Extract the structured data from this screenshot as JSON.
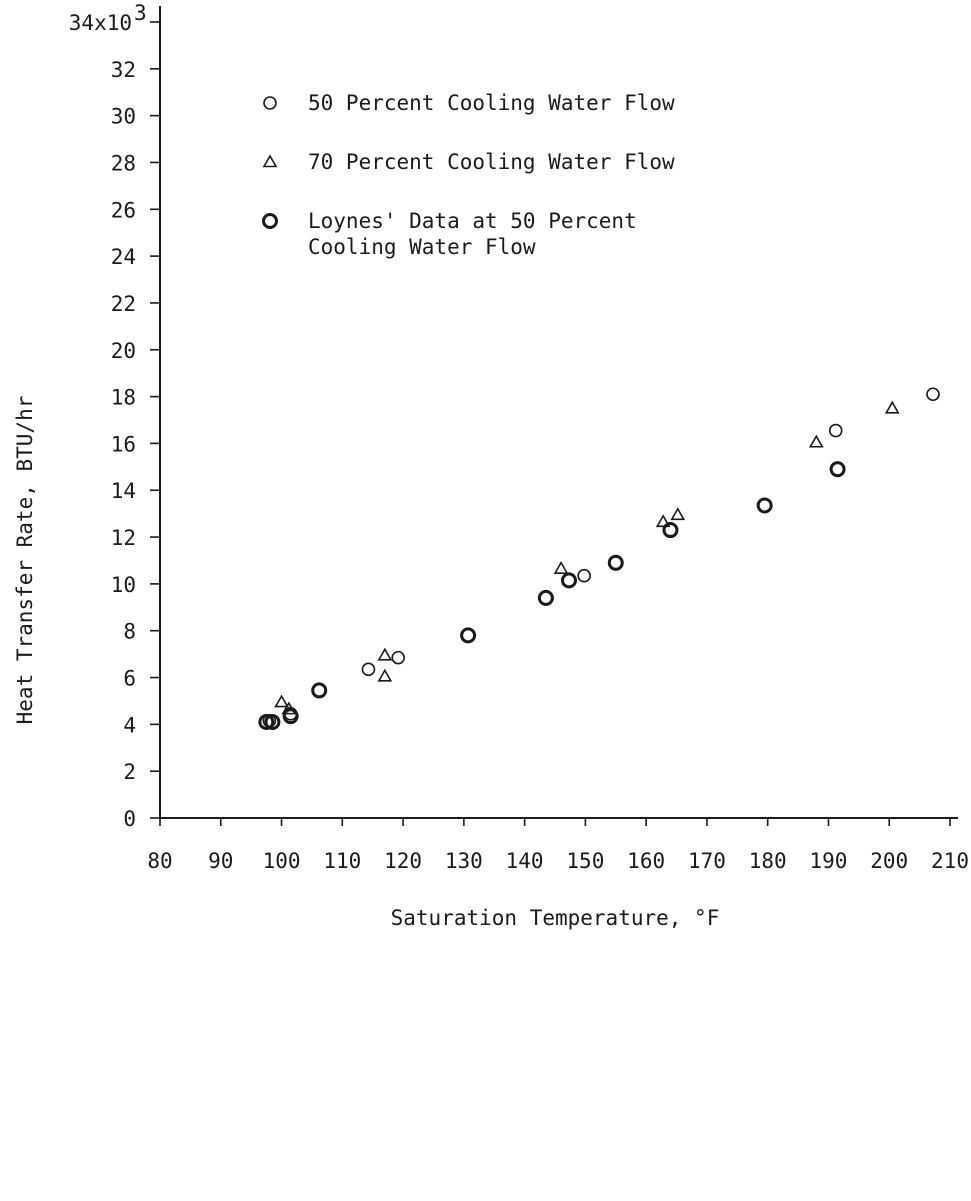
{
  "chart_data": {
    "type": "scatter",
    "title": "",
    "xlabel": "Saturation Temperature, °F",
    "ylabel": "Heat Transfer Rate, BTU/hr",
    "y_multiplier_label": "34x10",
    "y_multiplier_exp": "3",
    "xlim": [
      80,
      210
    ],
    "ylim": [
      0,
      34
    ],
    "x_ticks": [
      80,
      90,
      100,
      110,
      120,
      130,
      140,
      150,
      160,
      170,
      180,
      190,
      200,
      210
    ],
    "y_ticks": [
      0,
      2,
      4,
      6,
      8,
      10,
      12,
      14,
      16,
      18,
      20,
      22,
      24,
      26,
      28,
      30,
      32,
      34
    ],
    "grid": false,
    "legend_position": "top-left",
    "legend": [
      {
        "lines": [
          "50 Percent Cooling Water Flow"
        ],
        "marker": "circle"
      },
      {
        "lines": [
          "70 Percent Cooling Water Flow"
        ],
        "marker": "triangle"
      },
      {
        "lines": [
          "Loynes' Data at 50 Percent",
          "Cooling Water Flow"
        ],
        "marker": "thick-circle"
      }
    ],
    "series": [
      {
        "name": "50 Percent Cooling Water Flow",
        "marker": "circle",
        "points": [
          [
            98.0,
            4.15
          ],
          [
            101.5,
            4.45
          ],
          [
            114.3,
            6.35
          ],
          [
            119.2,
            6.85
          ],
          [
            149.8,
            10.35
          ],
          [
            191.2,
            16.55
          ],
          [
            207.2,
            18.1
          ]
        ]
      },
      {
        "name": "70 Percent Cooling Water Flow",
        "marker": "triangle",
        "points": [
          [
            100.0,
            4.95
          ],
          [
            101.2,
            4.65
          ],
          [
            117.0,
            6.95
          ],
          [
            117.0,
            6.05
          ],
          [
            146.0,
            10.65
          ],
          [
            162.8,
            12.65
          ],
          [
            165.2,
            12.95
          ],
          [
            188.0,
            16.05
          ],
          [
            200.5,
            17.5
          ]
        ]
      },
      {
        "name": "Loynes' Data at 50 Percent Cooling Water Flow",
        "marker": "thick-circle",
        "points": [
          [
            97.5,
            4.1
          ],
          [
            98.5,
            4.1
          ],
          [
            101.5,
            4.35
          ],
          [
            106.2,
            5.45
          ],
          [
            130.7,
            7.8
          ],
          [
            143.5,
            9.4
          ],
          [
            147.3,
            10.15
          ],
          [
            155.0,
            10.9
          ],
          [
            164.0,
            12.3
          ],
          [
            179.5,
            13.35
          ],
          [
            191.5,
            14.9
          ]
        ]
      }
    ]
  }
}
